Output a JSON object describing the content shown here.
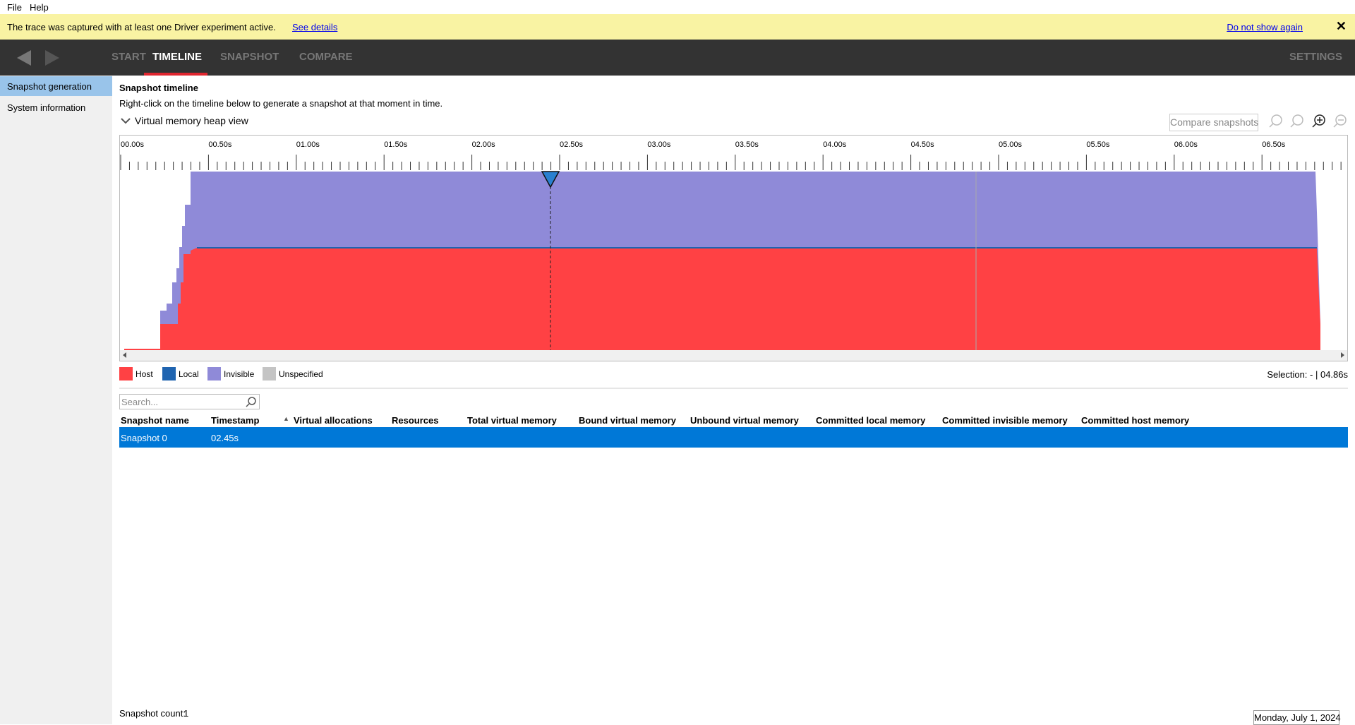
{
  "menu": [
    "File",
    "Help"
  ],
  "banner": {
    "message": "The trace was captured with at least one Driver experiment active.",
    "details_link": "See details",
    "dismiss_link": "Do not show again"
  },
  "nav": {
    "tabs": [
      "START",
      "TIMELINE",
      "SNAPSHOT",
      "COMPARE"
    ],
    "settings": "SETTINGS"
  },
  "sidebar": [
    "Snapshot generation",
    "System information"
  ],
  "timeline": {
    "title": "Snapshot timeline",
    "instruction": "Right-click on the timeline below to generate a snapshot at that moment in time.",
    "view": "Virtual memory heap view",
    "compare_button": "Compare snapshots",
    "ticks": [
      "00.00s",
      "00.50s",
      "01.00s",
      "01.50s",
      "02.00s",
      "02.50s",
      "03.00s",
      "03.50s",
      "04.00s",
      "04.50s",
      "05.00s",
      "05.50s",
      "06.00s",
      "06.50s"
    ],
    "legend": [
      {
        "name": "Host",
        "color": "#ff4144"
      },
      {
        "name": "Local",
        "color": "#1f64b0"
      },
      {
        "name": "Invisible",
        "color": "#8f8ad8"
      },
      {
        "name": "Unspecified",
        "color": "#c4c4c4"
      }
    ],
    "selection": "Selection: - | 04.86s"
  },
  "table": {
    "search_placeholder": "Search...",
    "columns": [
      "Snapshot name",
      "Timestamp",
      "Virtual allocations",
      "Resources",
      "Total virtual memory",
      "Bound virtual memory",
      "Unbound virtual memory",
      "Committed local memory",
      "Committed invisible memory",
      "Committed host memory"
    ],
    "rows": [
      [
        "Snapshot 0",
        "02.45s"
      ]
    ]
  },
  "footer": {
    "count_label": "Snapshot count:",
    "count": "1",
    "date": "Monday, July 1, 2024"
  }
}
